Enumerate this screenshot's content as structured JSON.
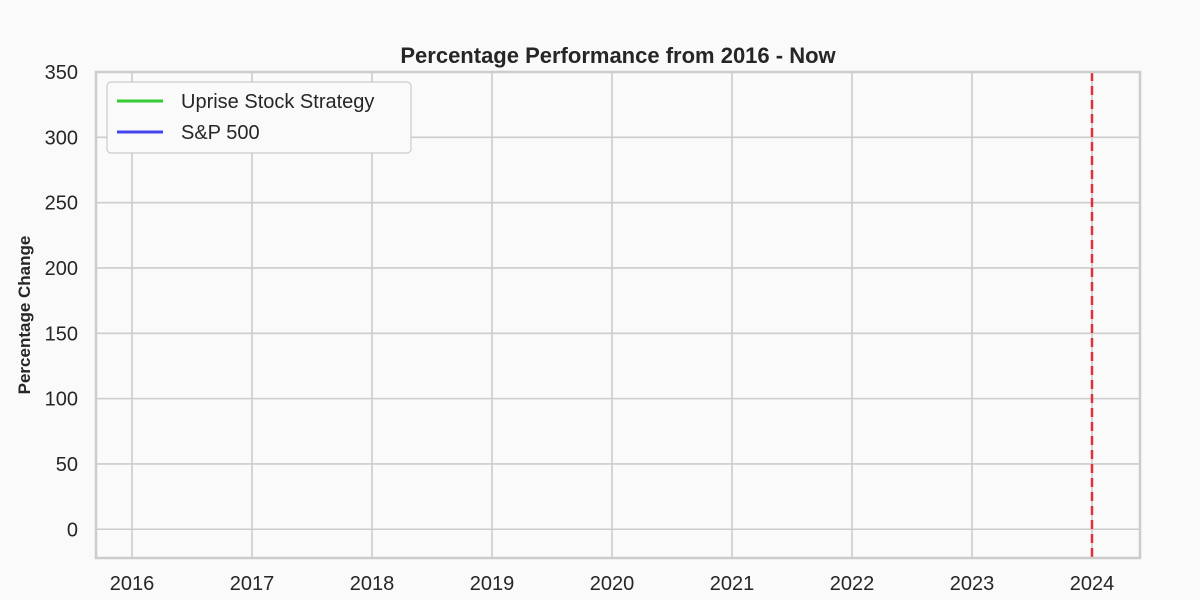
{
  "chart_data": {
    "type": "line",
    "title": "Percentage Performance from 2016 - Now",
    "xlabel": "",
    "ylabel": "Percentage Change",
    "x_ticks": [
      "2016",
      "2017",
      "2018",
      "2019",
      "2020",
      "2021",
      "2022",
      "2023",
      "2024"
    ],
    "xlim": [
      2015.7,
      2024.4
    ],
    "y_ticks": [
      0,
      50,
      100,
      150,
      200,
      250,
      300,
      350
    ],
    "ylim": [
      -22,
      350
    ],
    "grid": true,
    "legend_position": "top-left",
    "series": [
      {
        "name": "Uprise Stock Strategy",
        "color": "#33cc33",
        "values": []
      },
      {
        "name": "S&P 500",
        "color": "#4444ee",
        "values": []
      }
    ],
    "reference_line": {
      "x": 2024,
      "color": "#e0303a",
      "style": "dashed"
    }
  }
}
